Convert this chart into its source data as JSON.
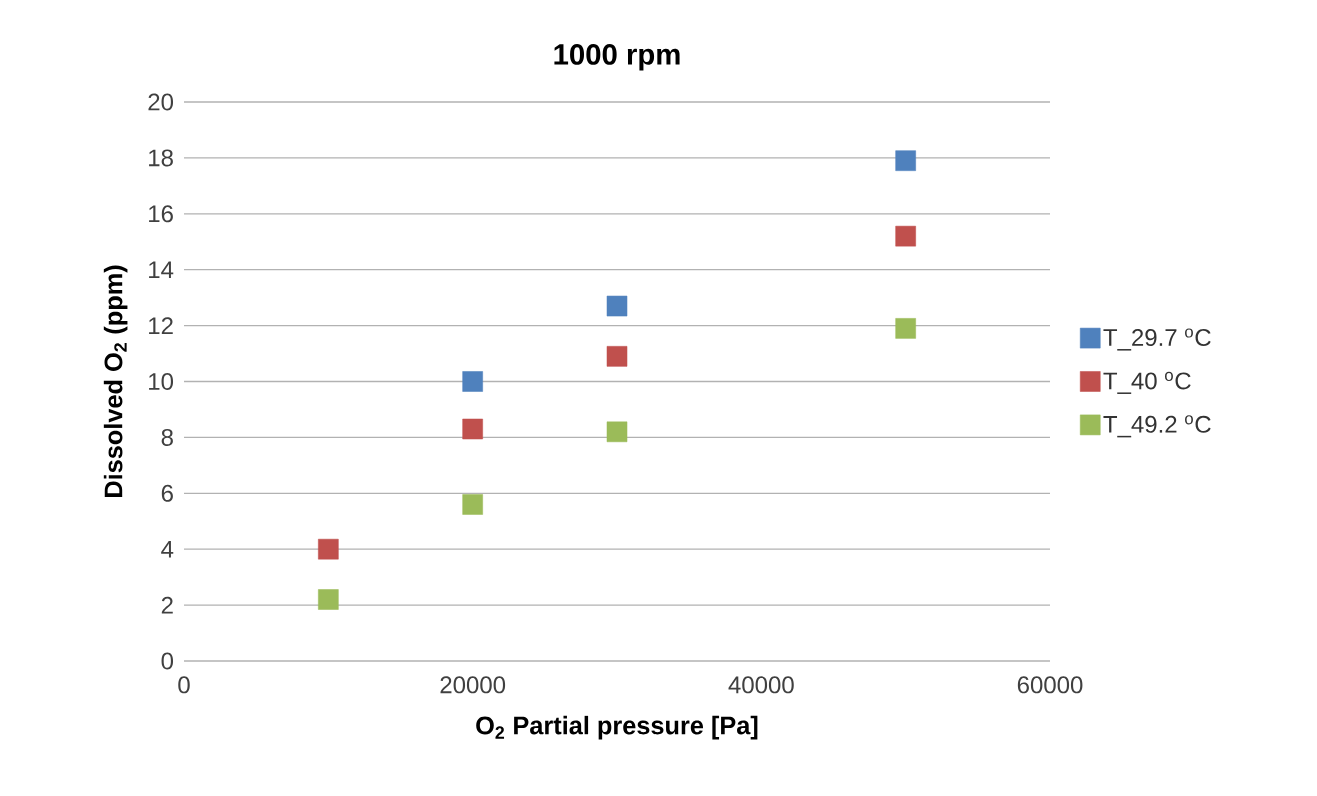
{
  "chart_data": {
    "type": "scatter",
    "title": "1000 rpm",
    "xlabel": "O$_{2}$ Partial pressure [Pa]",
    "ylabel": "Dissolved O$_{2}$ (ppm)",
    "xlim": [
      0,
      60000
    ],
    "xticks": [
      0,
      20000,
      40000,
      60000
    ],
    "ylim": [
      0,
      20
    ],
    "yticks": [
      0,
      2,
      4,
      6,
      8,
      10,
      12,
      14,
      16,
      18,
      20
    ],
    "grid": "y",
    "legend": "right",
    "marker": "square",
    "series": [
      {
        "name": "T_29.7 $^{o}$C",
        "color": "#4f81bd",
        "x": [
          20000,
          30000,
          50000
        ],
        "values": [
          10.0,
          12.7,
          17.9
        ]
      },
      {
        "name": "T_40 $^{o}$C",
        "color": "#c0504d",
        "x": [
          10000,
          20000,
          30000,
          50000
        ],
        "values": [
          4.0,
          8.3,
          10.9,
          15.2
        ]
      },
      {
        "name": "T_49.2 $^{o}$C",
        "color": "#9bbb59",
        "x": [
          10000,
          20000,
          30000,
          50000
        ],
        "values": [
          2.2,
          5.6,
          8.2,
          11.9
        ]
      }
    ]
  }
}
